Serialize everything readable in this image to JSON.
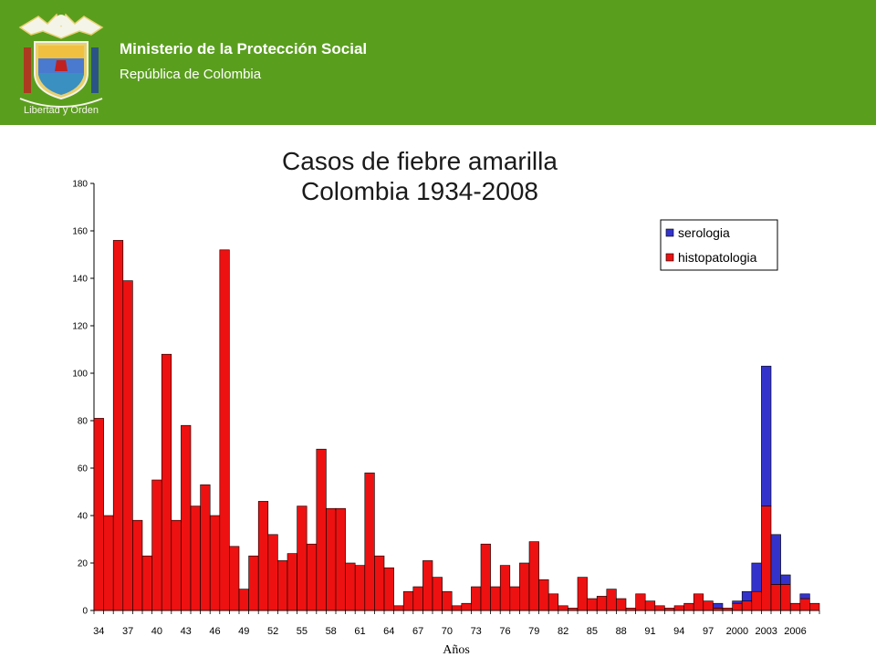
{
  "header": {
    "org_name": "Ministerio de la Protección Social",
    "org_subtitle": "República de Colombia",
    "crest_motto": "Libertad y Orden",
    "background_color": "#5a9e1e"
  },
  "chart_data": {
    "type": "bar",
    "stacked": true,
    "title_line1": "Casos de fiebre amarilla",
    "title_line2": "Colombia 1934-2008",
    "xlabel": "Años",
    "ylabel": "",
    "ylim": [
      0,
      180
    ],
    "yticks": [
      0,
      20,
      40,
      60,
      80,
      100,
      120,
      140,
      160,
      180
    ],
    "legend_position": "top-right",
    "categories": [
      "34",
      "35",
      "36",
      "37",
      "38",
      "39",
      "40",
      "41",
      "42",
      "43",
      "44",
      "45",
      "46",
      "47",
      "48",
      "49",
      "50",
      "51",
      "52",
      "53",
      "54",
      "55",
      "56",
      "57",
      "58",
      "59",
      "60",
      "61",
      "62",
      "63",
      "64",
      "65",
      "66",
      "67",
      "68",
      "69",
      "70",
      "71",
      "72",
      "73",
      "74",
      "75",
      "76",
      "77",
      "78",
      "79",
      "80",
      "81",
      "82",
      "83",
      "84",
      "85",
      "86",
      "87",
      "88",
      "89",
      "90",
      "91",
      "92",
      "93",
      "94",
      "95",
      "96",
      "97",
      "98",
      "99",
      "2000",
      "2001",
      "2002",
      "2003",
      "2004",
      "2005",
      "2006",
      "2007",
      "2008"
    ],
    "tick_labels": [
      "34",
      "37",
      "40",
      "43",
      "46",
      "49",
      "52",
      "55",
      "58",
      "61",
      "64",
      "67",
      "70",
      "73",
      "76",
      "79",
      "82",
      "85",
      "88",
      "91",
      "94",
      "97",
      "2000",
      "2003",
      "2006"
    ],
    "series": [
      {
        "name": "serologia",
        "color": "#3333cc",
        "values": [
          0,
          0,
          0,
          0,
          0,
          0,
          0,
          0,
          0,
          0,
          0,
          0,
          0,
          0,
          0,
          0,
          0,
          0,
          0,
          0,
          0,
          0,
          0,
          0,
          0,
          0,
          0,
          0,
          0,
          0,
          0,
          0,
          0,
          0,
          0,
          0,
          0,
          0,
          0,
          0,
          0,
          0,
          0,
          0,
          0,
          0,
          0,
          0,
          0,
          0,
          0,
          0,
          0,
          0,
          0,
          0,
          0,
          0,
          0,
          0,
          0,
          0,
          0,
          0,
          2,
          0,
          1,
          4,
          12,
          59,
          21,
          4,
          0,
          2,
          0
        ]
      },
      {
        "name": "histopatologia",
        "color": "#ee1111",
        "values": [
          81,
          40,
          156,
          139,
          38,
          23,
          55,
          108,
          38,
          78,
          44,
          53,
          40,
          152,
          27,
          9,
          23,
          46,
          32,
          21,
          24,
          44,
          28,
          68,
          43,
          43,
          20,
          19,
          58,
          23,
          18,
          2,
          8,
          10,
          21,
          14,
          8,
          2,
          3,
          10,
          28,
          10,
          19,
          10,
          20,
          29,
          13,
          7,
          2,
          1,
          14,
          5,
          6,
          9,
          5,
          1,
          7,
          4,
          2,
          1,
          2,
          3,
          7,
          4,
          1,
          1,
          3,
          4,
          8,
          44,
          11,
          11,
          3,
          5,
          3
        ]
      }
    ]
  }
}
